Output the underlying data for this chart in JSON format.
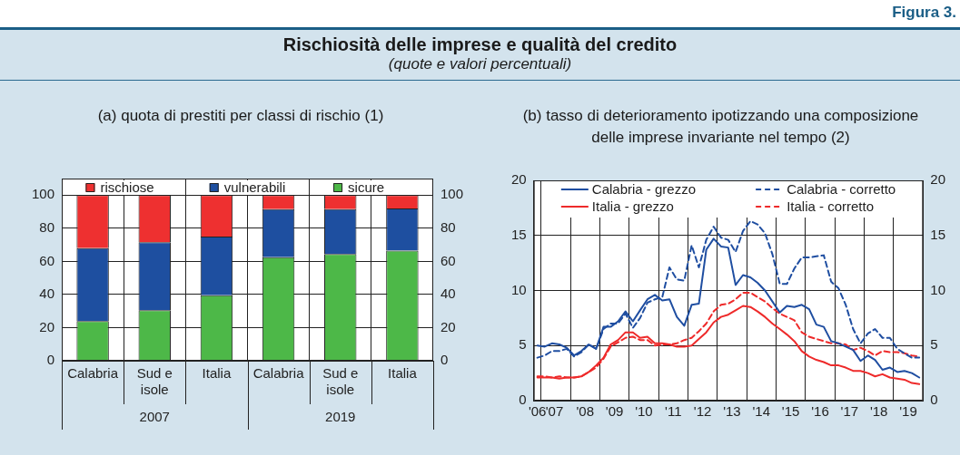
{
  "chart_data": [
    {
      "type": "bar",
      "title": "(a) quota di prestiti per classi di rischio (1)",
      "annotations": [
        "Figura 3.",
        "Rischiosità delle imprese e qualità del credito",
        "(quote e valori percentuali)",
        "2007",
        "2019"
      ],
      "categories": [
        "Calabria",
        "Sud e isole",
        "Italia",
        "Calabria",
        "Sud e isole",
        "Italia"
      ],
      "stacked": true,
      "series": [
        {
          "name": "sicure",
          "color": "#4db848",
          "values": [
            24,
            30.5,
            39.5,
            62.5,
            64.5,
            66.5
          ]
        },
        {
          "name": "vulnerabili",
          "color": "#1e4fa0",
          "values": [
            44,
            41,
            35.5,
            29,
            27,
            25.5
          ]
        },
        {
          "name": "rischiose",
          "color": "#ee3030",
          "values": [
            32,
            28.5,
            25,
            8.5,
            8.5,
            8
          ]
        }
      ],
      "ylim": [
        0,
        110
      ],
      "yticks": [
        0,
        20,
        40,
        60,
        80,
        100
      ],
      "y2lim": [
        0,
        110
      ],
      "y2ticks": [
        0,
        20,
        40,
        60,
        80,
        100
      ],
      "grid": true,
      "legend": "top"
    },
    {
      "type": "line",
      "title": "(b) tasso di deterioramento ipotizzando una composizione delle imprese invariante nel tempo (2)",
      "x": [
        "2006-11-15",
        "2007-02-15",
        "2007-05-15",
        "2007-08-15",
        "2007-11-15",
        "2008-02-15",
        "2008-05-15",
        "2008-08-15",
        "2008-11-15",
        "2009-02-15",
        "2009-05-15",
        "2009-08-15",
        "2009-11-15",
        "2010-02-15",
        "2010-05-15",
        "2010-08-15",
        "2010-11-15",
        "2011-02-15",
        "2011-05-15",
        "2011-08-15",
        "2011-11-15",
        "2012-02-15",
        "2012-05-15",
        "2012-08-15",
        "2012-11-15",
        "2013-02-15",
        "2013-05-15",
        "2013-08-15",
        "2013-11-15",
        "2014-02-15",
        "2014-05-15",
        "2014-08-15",
        "2014-11-15",
        "2015-02-15",
        "2015-05-15",
        "2015-08-15",
        "2015-11-15",
        "2016-02-15",
        "2016-05-15",
        "2016-08-15",
        "2016-11-15",
        "2017-02-15",
        "2017-05-15",
        "2017-08-15",
        "2017-11-15",
        "2018-02-15",
        "2018-05-15",
        "2018-08-15",
        "2018-11-15",
        "2019-02-15",
        "2019-05-15",
        "2019-08-15",
        "2019-11-15"
      ],
      "series": [
        {
          "name": "Calabria - grezzo",
          "color": "#1f4ea1",
          "line_style": "solid",
          "values": [
            5.0,
            4.9,
            5.2,
            5.1,
            4.8,
            4.1,
            4.5,
            5.1,
            4.7,
            6.7,
            6.7,
            7.2,
            8.1,
            7.2,
            8.2,
            9.2,
            9.6,
            9.1,
            9.2,
            7.6,
            6.8,
            8.7,
            8.8,
            13.7,
            14.7,
            14.0,
            13.9,
            10.5,
            11.4,
            11.2,
            10.7,
            10.0,
            9.0,
            8.0,
            8.6,
            8.5,
            8.7,
            8.3,
            6.9,
            6.7,
            5.4,
            5.2,
            4.9,
            4.6,
            3.6,
            4.1,
            3.7,
            2.8,
            3.0,
            2.6,
            2.7,
            2.5,
            2.1
          ]
        },
        {
          "name": "Calabria - corretto",
          "color": "#1f4ea1",
          "line_style": "dashed",
          "values": [
            3.9,
            4.1,
            4.5,
            4.5,
            4.7,
            4.0,
            4.4,
            5.1,
            4.7,
            6.5,
            7.0,
            7.0,
            7.9,
            6.6,
            7.5,
            8.9,
            9.2,
            9.4,
            12.1,
            11.0,
            10.9,
            14.1,
            12.1,
            14.6,
            15.8,
            14.8,
            14.6,
            13.5,
            15.4,
            16.3,
            16.0,
            15.2,
            13.3,
            10.6,
            10.6,
            12.0,
            13.0,
            13.0,
            13.1,
            13.2,
            10.8,
            10.2,
            8.7,
            6.5,
            5.2,
            6.1,
            6.5,
            5.7,
            5.7,
            4.7,
            4.3,
            3.9,
            3.9
          ]
        },
        {
          "name": "Italia - grezzo",
          "color": "#ee2a2a",
          "line_style": "solid",
          "values": [
            2.1,
            2.1,
            2.1,
            2.0,
            2.1,
            2.1,
            2.2,
            2.6,
            3.2,
            3.9,
            5.1,
            5.5,
            6.2,
            6.2,
            5.7,
            5.8,
            5.2,
            5.2,
            5.1,
            4.9,
            4.9,
            5.0,
            5.6,
            6.2,
            7.1,
            7.6,
            7.8,
            8.2,
            8.6,
            8.5,
            8.1,
            7.6,
            7.0,
            6.5,
            6.0,
            5.4,
            4.5,
            4.0,
            3.7,
            3.5,
            3.2,
            3.2,
            3.0,
            2.7,
            2.7,
            2.5,
            2.2,
            2.4,
            2.1,
            2.0,
            1.9,
            1.6,
            1.5
          ]
        },
        {
          "name": "Italia - corretto",
          "color": "#ee2a2a",
          "line_style": "dashed",
          "values": [
            2.2,
            2.2,
            2.1,
            2.2,
            2.1,
            2.1,
            2.2,
            2.6,
            3.0,
            3.8,
            4.9,
            5.3,
            5.7,
            5.8,
            5.5,
            5.5,
            5.0,
            5.1,
            5.1,
            5.2,
            5.5,
            5.7,
            6.3,
            7.0,
            8.1,
            8.7,
            8.8,
            9.2,
            9.8,
            9.8,
            9.4,
            9.0,
            8.4,
            7.9,
            7.6,
            7.3,
            6.2,
            5.8,
            5.6,
            5.4,
            5.2,
            5.2,
            5.1,
            4.6,
            4.8,
            4.5,
            4.1,
            4.5,
            4.4,
            4.4,
            4.3,
            4.1,
            4.0
          ]
        }
      ],
      "xlim": [
        "2006-10",
        "2020"
      ],
      "xticks": [
        {
          "value": "2006-11-15",
          "label": "'06"
        },
        {
          "value": "2007",
          "label": null
        },
        {
          "value": "2007-06-15",
          "label": "'07"
        },
        {
          "value": "2008",
          "label": null
        },
        {
          "value": "2008-07",
          "label": "'08"
        },
        {
          "value": "2009",
          "label": null
        },
        {
          "value": "2009-07",
          "label": "'09"
        },
        {
          "value": "2010",
          "label": null
        },
        {
          "value": "2010-07",
          "label": "'10"
        },
        {
          "value": "2011",
          "label": null
        },
        {
          "value": "2011-07",
          "label": "'11"
        },
        {
          "value": "2012",
          "label": null
        },
        {
          "value": "2012-07",
          "label": "'12"
        },
        {
          "value": "2013",
          "label": null
        },
        {
          "value": "2013-07",
          "label": "'13"
        },
        {
          "value": "2014",
          "label": null
        },
        {
          "value": "2014-07",
          "label": "'14"
        },
        {
          "value": "2015",
          "label": null
        },
        {
          "value": "2015-07",
          "label": "'15"
        },
        {
          "value": "2016",
          "label": null
        },
        {
          "value": "2016-07",
          "label": "'16"
        },
        {
          "value": "2017",
          "label": null
        },
        {
          "value": "2017-07",
          "label": "'17"
        },
        {
          "value": "2018",
          "label": null
        },
        {
          "value": "2018-07",
          "label": "'18"
        },
        {
          "value": "2019",
          "label": null
        },
        {
          "value": "2019-07",
          "label": "'19"
        }
      ],
      "ylim": [
        0,
        20
      ],
      "yticks": [
        0,
        5,
        10,
        15,
        20
      ],
      "y2lim": [
        0,
        20
      ],
      "y2ticks": [
        0,
        5,
        10,
        15,
        20
      ],
      "grid": true,
      "legend": "top"
    }
  ]
}
